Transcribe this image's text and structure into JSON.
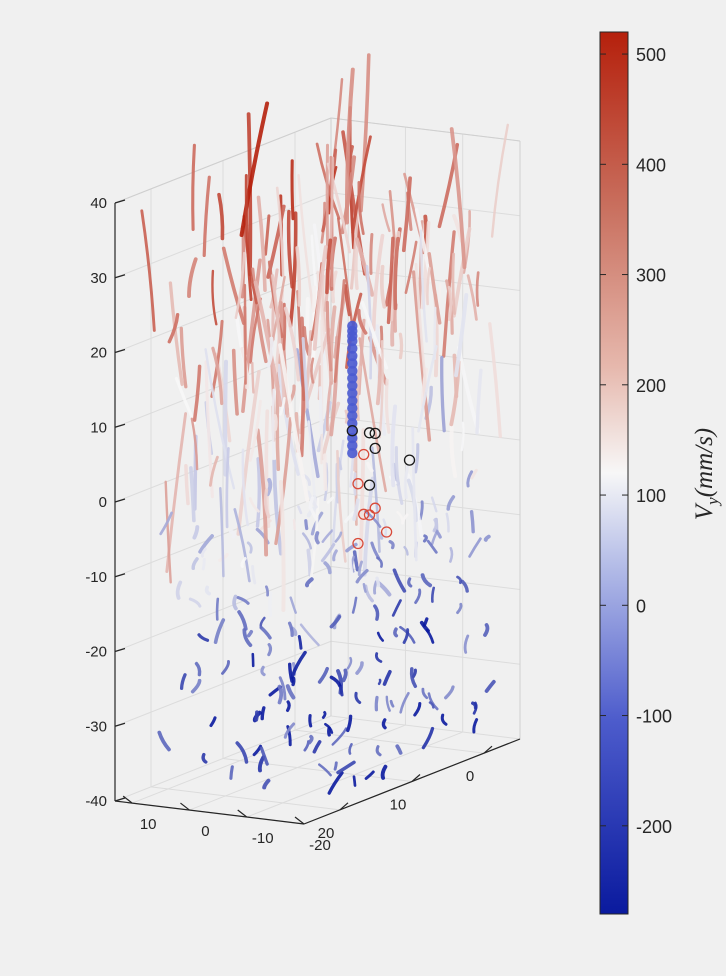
{
  "chart_data": {
    "type": "scatter",
    "subtype": "3d-trajectories",
    "title": "",
    "grid": true,
    "background": "#f0f0f0",
    "axes": {
      "x": {
        "ticks": [
          0,
          10,
          20
        ],
        "tick_labels": [
          "0",
          "10",
          "20"
        ],
        "range": [
          -5,
          25
        ]
      },
      "y": {
        "ticks": [
          -20,
          -10,
          0,
          10
        ],
        "tick_labels": [
          "-20",
          "-10",
          "0",
          "10"
        ],
        "range": [
          -20,
          13
        ]
      },
      "z": {
        "ticks": [
          -40,
          -30,
          -20,
          -10,
          0,
          10,
          20,
          30,
          40
        ],
        "tick_labels": [
          "-40",
          "-30",
          "-20",
          "-10",
          "0",
          "10",
          "20",
          "30",
          "40"
        ],
        "range": [
          -40,
          40
        ]
      }
    },
    "colorbar": {
      "label": "V_y(mm/s)",
      "label_parts": {
        "var": "V",
        "sub": "y",
        "rest": "(mm/s)"
      },
      "range": [
        -280,
        520
      ],
      "ticks": [
        500,
        400,
        300,
        200,
        100,
        0,
        -100,
        -200
      ],
      "tick_labels": [
        "500",
        "400",
        "300",
        "200",
        "100",
        "0",
        "-100",
        "-200"
      ],
      "colormap": "blue-white-red",
      "color_min": "#0a1a9e",
      "color_mid": "#f7f7f7",
      "color_max": "#b5200c"
    },
    "highlight_track": {
      "name": "",
      "color": "#4a5ad0",
      "points": [
        [
          0,
          3,
          -2
        ],
        [
          0,
          3,
          1
        ],
        [
          0,
          3,
          4
        ],
        [
          0,
          3,
          7
        ],
        [
          0,
          3,
          10
        ],
        [
          0,
          3,
          13
        ],
        [
          0,
          3,
          15
        ]
      ]
    },
    "red_circle_markers": [
      [
        0,
        1,
        -2
      ],
      [
        0,
        2,
        -6
      ],
      [
        0,
        1,
        -10
      ],
      [
        0,
        0,
        -10
      ],
      [
        0,
        2,
        -14
      ],
      [
        0,
        -3,
        -12
      ],
      [
        0,
        -1,
        -9
      ]
    ],
    "black_circle_markers": [
      [
        0,
        3,
        1
      ],
      [
        0,
        0,
        1
      ],
      [
        0,
        -1,
        1
      ],
      [
        0,
        -1,
        -1
      ],
      [
        0,
        -7,
        -2
      ],
      [
        0,
        0,
        -6
      ]
    ]
  }
}
